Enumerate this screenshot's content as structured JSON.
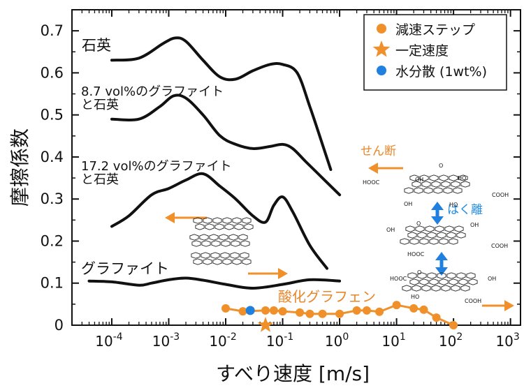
{
  "chart_data": {
    "type": "line",
    "xlabel": "すべり速度 [m/s]",
    "ylabel": "摩擦係数",
    "xscale": "log",
    "xlim": [
      2e-05,
      1500
    ],
    "ylim": [
      0,
      0.75
    ],
    "xticks": [
      {
        "value": 0.0001,
        "base": "10",
        "exp": "-4"
      },
      {
        "value": 0.001,
        "base": "10",
        "exp": "-3"
      },
      {
        "value": 0.01,
        "base": "10",
        "exp": "-2"
      },
      {
        "value": 0.1,
        "base": "10",
        "exp": "-1"
      },
      {
        "value": 1,
        "base": "10",
        "exp": "0"
      },
      {
        "value": 10,
        "base": "10",
        "exp": "1"
      },
      {
        "value": 100,
        "base": "10",
        "exp": "2"
      },
      {
        "value": 1000,
        "base": "10",
        "exp": "3"
      }
    ],
    "yticks": [
      "0",
      "0.1",
      "0.2",
      "0.3",
      "0.4",
      "0.5",
      "0.6",
      "0.7"
    ],
    "curves": [
      {
        "label": [
          "石英"
        ],
        "color": "#111111",
        "x": [
          0.0001,
          0.0003,
          0.0008,
          0.0013,
          0.002,
          0.004,
          0.008,
          0.015,
          0.03,
          0.06,
          0.1,
          0.18,
          0.3,
          0.5,
          0.7
        ],
        "y": [
          0.63,
          0.635,
          0.67,
          0.683,
          0.675,
          0.63,
          0.59,
          0.585,
          0.605,
          0.62,
          0.62,
          0.6,
          0.52,
          0.43,
          0.37
        ]
      },
      {
        "label": [
          "8.7 vol%のグラファイト",
          "と石英"
        ],
        "color": "#111111",
        "x": [
          0.0001,
          0.0003,
          0.0007,
          0.0012,
          0.002,
          0.004,
          0.008,
          0.015,
          0.03,
          0.06,
          0.1,
          0.15,
          0.25,
          0.5,
          1.0
        ],
        "y": [
          0.49,
          0.49,
          0.52,
          0.545,
          0.54,
          0.5,
          0.45,
          0.43,
          0.42,
          0.425,
          0.43,
          0.42,
          0.39,
          0.35,
          0.31
        ]
      },
      {
        "label": [
          "17.2 vol%のグラファイト",
          "と石英"
        ],
        "color": "#111111",
        "x": [
          0.0001,
          0.0002,
          0.0005,
          0.001,
          0.002,
          0.004,
          0.008,
          0.015,
          0.03,
          0.05,
          0.07,
          0.1,
          0.15,
          0.3,
          0.6
        ],
        "y": [
          0.235,
          0.26,
          0.31,
          0.325,
          0.345,
          0.36,
          0.33,
          0.3,
          0.26,
          0.245,
          0.285,
          0.305,
          0.27,
          0.19,
          0.135
        ]
      },
      {
        "label": [
          "グラファイト"
        ],
        "color": "#111111",
        "x": [
          4e-05,
          0.0001,
          0.0003,
          0.0005,
          0.001,
          0.002,
          0.004,
          0.01,
          0.03,
          0.1,
          0.3,
          1.0
        ],
        "y": [
          0.105,
          0.103,
          0.095,
          0.1,
          0.108,
          0.112,
          0.107,
          0.097,
          0.088,
          0.097,
          0.108,
          0.105
        ]
      }
    ],
    "series": [
      {
        "name": "減速ステップ",
        "color": "#f0902a",
        "marker": "circle",
        "x": [
          0.01,
          0.02,
          0.05,
          0.07,
          0.1,
          0.2,
          0.3,
          0.5,
          1.0,
          2.0,
          3.0,
          5.0,
          10.0,
          20.0,
          30.0,
          50.0,
          100.0
        ],
        "y": [
          0.04,
          0.033,
          0.035,
          0.035,
          0.033,
          0.03,
          0.027,
          0.027,
          0.027,
          0.035,
          0.035,
          0.032,
          0.048,
          0.04,
          0.037,
          0.018,
          0.0
        ]
      },
      {
        "name": "一定速度",
        "color": "#f0902a",
        "marker": "star",
        "x": [
          0.05
        ],
        "y": [
          0.0
        ]
      },
      {
        "name": "水分散 (1wt%)",
        "color": "#1f80e0",
        "marker": "circle",
        "x": [
          0.027
        ],
        "y": [
          0.035
        ]
      }
    ],
    "annotations": {
      "go_label": "酸化グラフェン",
      "shear": "せん断",
      "peel": "はく離",
      "chem_labels": [
        "HOOC",
        "OH",
        "O",
        "HO",
        "COOH",
        "OH",
        "HO",
        "OH",
        "O",
        "HOOC",
        "COOH",
        "OH",
        "HOOC",
        "O",
        "HO",
        "OH",
        "COOH"
      ]
    },
    "legend": {
      "position": "top-right"
    }
  }
}
